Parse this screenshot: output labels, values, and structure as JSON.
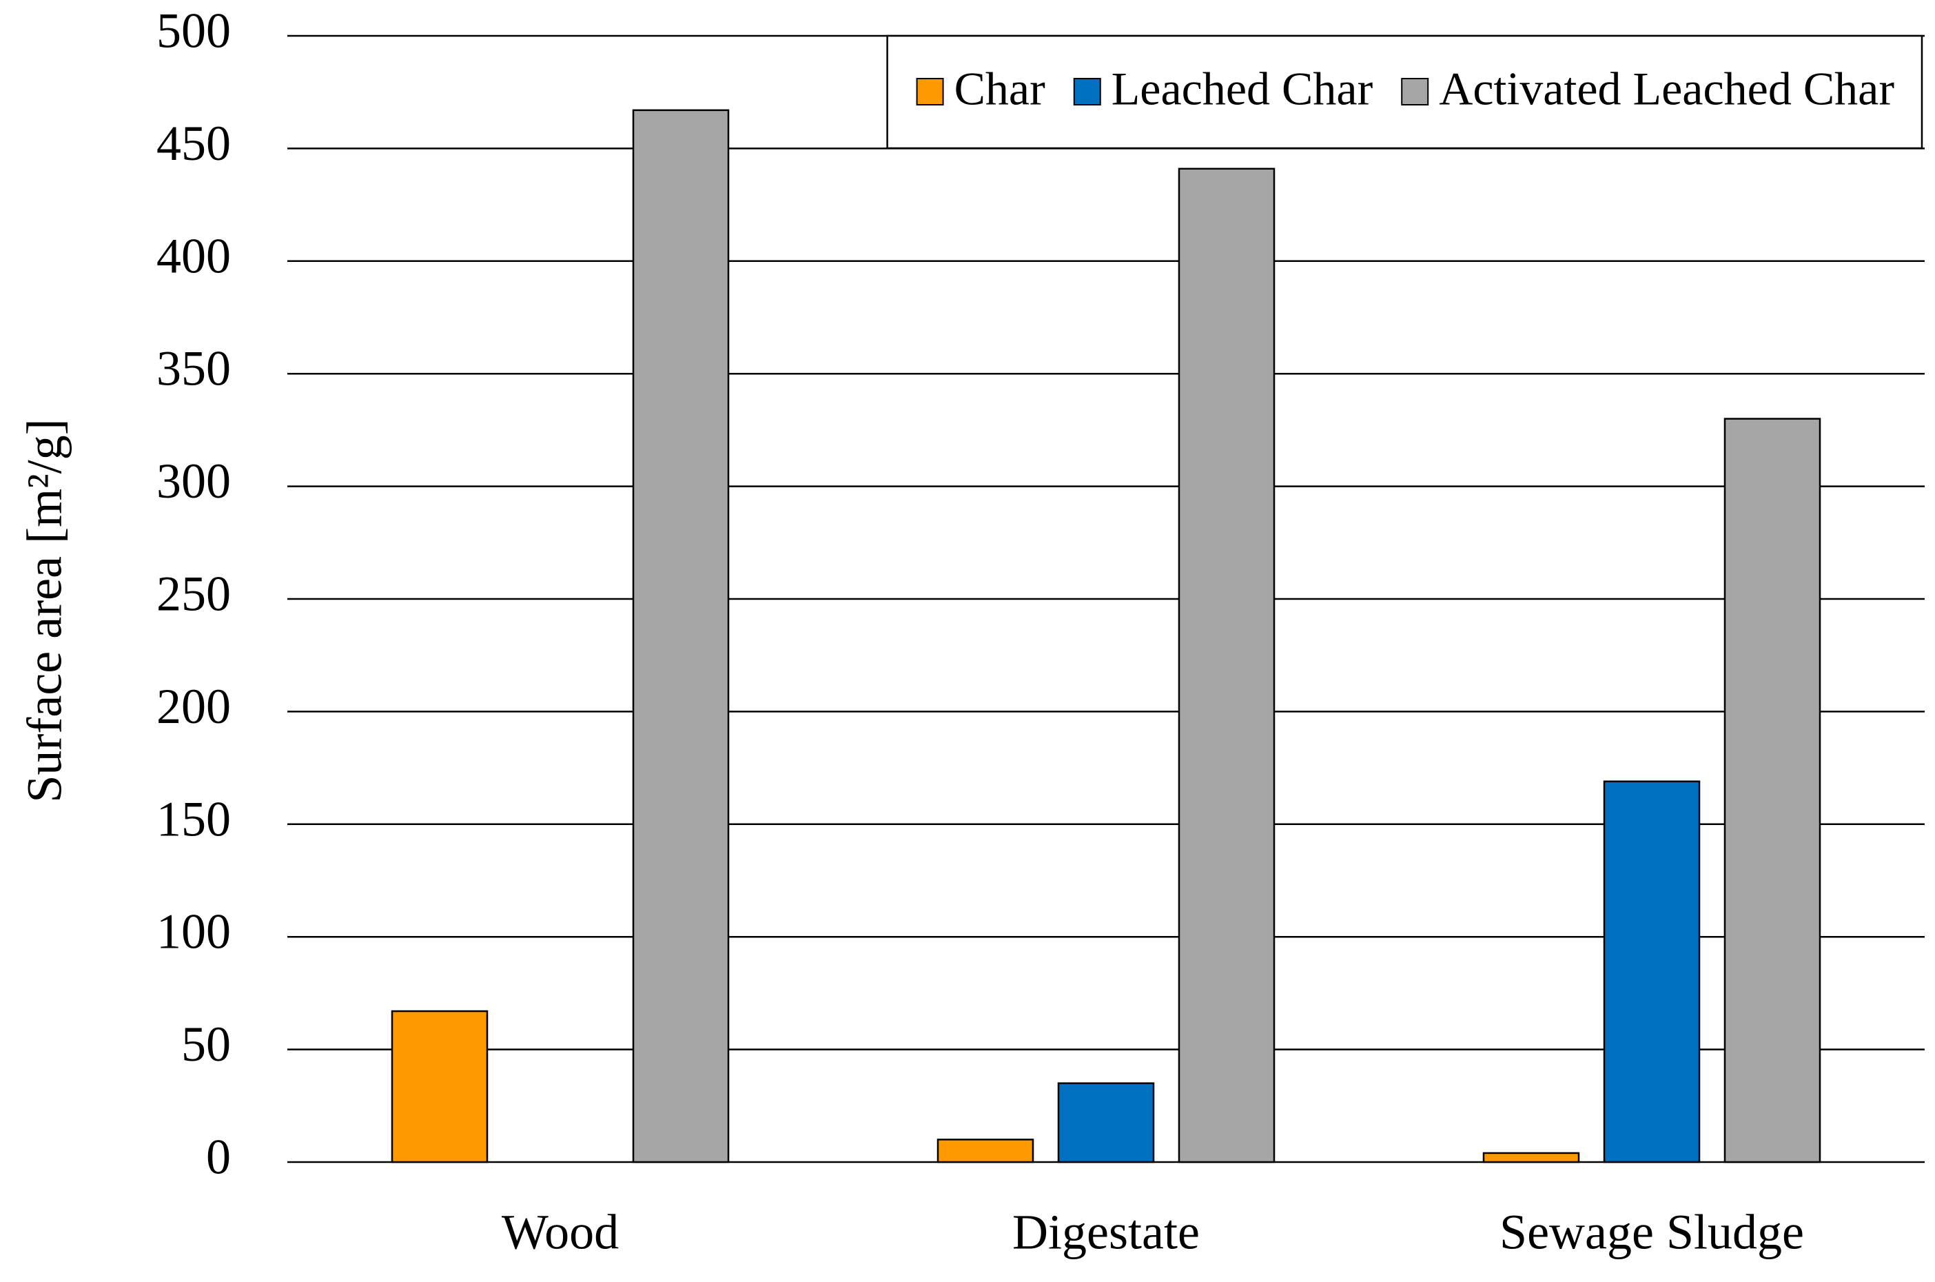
{
  "chart_data": {
    "type": "bar",
    "y_label": "Surface area [m²/g]",
    "categories": [
      "Wood",
      "Digestate",
      "Sewage Sludge"
    ],
    "series": [
      {
        "name": "Char",
        "color": "#ff9900",
        "values": [
          67,
          10,
          4
        ]
      },
      {
        "name": "Leached Char",
        "color": "#0070c0",
        "values": [
          null,
          35,
          169
        ]
      },
      {
        "name": "Activated Leached Char",
        "color": "#a6a6a6",
        "values": [
          467,
          441,
          330
        ]
      }
    ],
    "ylim": [
      0,
      500
    ],
    "yticks": [
      0,
      50,
      100,
      150,
      200,
      250,
      300,
      350,
      400,
      450,
      500
    ],
    "grid": true,
    "legend": "top-right"
  }
}
